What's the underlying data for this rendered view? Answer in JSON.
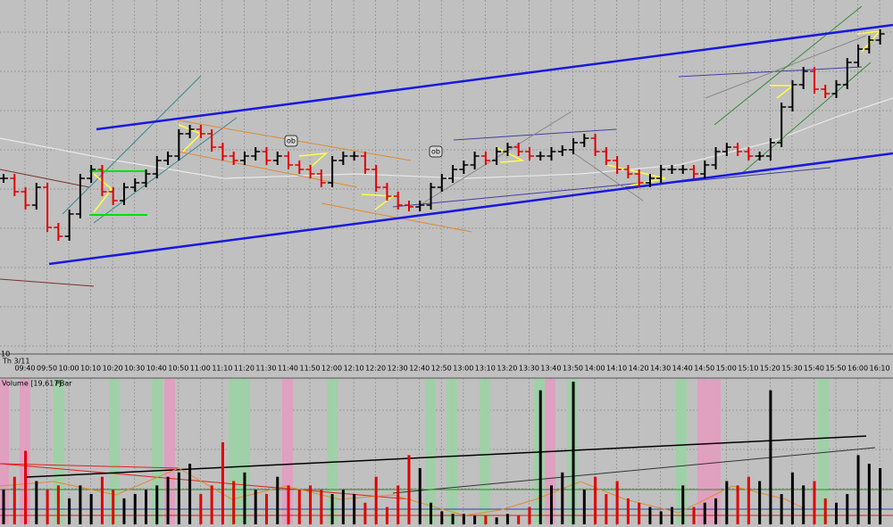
{
  "screen": {
    "corner_label": "10",
    "date_label": "Th 3/11",
    "volume_label": "Volume [19,617]",
    "pbar_label": "PBar",
    "annotations": [
      "ob",
      "ob"
    ],
    "time_labels": [
      "09:40",
      "09:50",
      "10:00",
      "10:10",
      "10:20",
      "10:30",
      "10:40",
      "10:50",
      "11:00",
      "11:10",
      "11:20",
      "11:30",
      "11:40",
      "11:50",
      "12:00",
      "12:10",
      "12:20",
      "12:30",
      "12:40",
      "12:50",
      "13:00",
      "13:10",
      "13:20",
      "13:30",
      "13:40",
      "13:50",
      "14:00",
      "14:10",
      "14:20",
      "14:30",
      "14:40",
      "14:50",
      "15:00",
      "15:10",
      "15:20",
      "15:30",
      "15:40",
      "15:50",
      "16:00",
      "16:10"
    ],
    "price": {
      "ylim": [
        0,
        395
      ],
      "close": [
        195,
        180,
        165,
        185,
        140,
        130,
        155,
        195,
        205,
        180,
        170,
        185,
        190,
        200,
        215,
        220,
        245,
        250,
        245,
        230,
        220,
        215,
        220,
        225,
        215,
        220,
        210,
        205,
        200,
        190,
        215,
        220,
        220,
        205,
        185,
        175,
        165,
        163,
        165,
        185,
        195,
        205,
        210,
        220,
        215,
        225,
        230,
        225,
        220,
        220,
        225,
        227,
        235,
        240,
        225,
        215,
        205,
        200,
        190,
        195,
        205,
        205,
        205,
        200,
        210,
        225,
        230,
        225,
        220,
        220,
        235,
        275,
        300,
        315,
        295,
        290,
        300,
        325,
        340,
        350,
        357
      ]
    },
    "volume": {
      "vlim": [
        0,
        165
      ],
      "values": [
        40,
        55,
        85,
        50,
        40,
        45,
        30,
        45,
        35,
        55,
        40,
        30,
        35,
        40,
        45,
        55,
        60,
        70,
        35,
        45,
        95,
        50,
        60,
        40,
        35,
        55,
        45,
        40,
        45,
        40,
        35,
        40,
        35,
        25,
        55,
        20,
        45,
        80,
        65,
        25,
        15,
        12,
        12,
        10,
        10,
        8,
        12,
        10,
        20,
        155,
        45,
        60,
        165,
        40,
        55,
        35,
        50,
        30,
        25,
        20,
        15,
        20,
        45,
        20,
        25,
        30,
        50,
        45,
        55,
        50,
        155,
        35,
        60,
        45,
        50,
        30,
        25,
        35,
        80,
        70,
        65
      ]
    }
  }
}
